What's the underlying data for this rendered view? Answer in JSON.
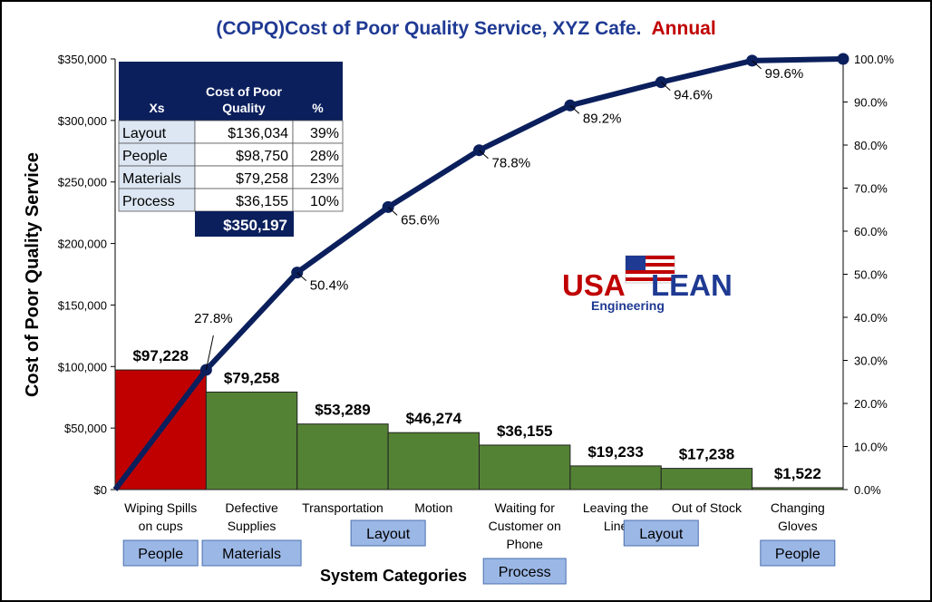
{
  "chart_data": {
    "type": "pareto",
    "title": "(COPQ)Cost of Poor Quality Service, XYZ Cafe.",
    "title_suffix": "Annual",
    "xlabel": "System Categories",
    "ylabel": "Cost of Poor Quality Service",
    "ylim": [
      0,
      350000
    ],
    "y2lim": [
      0,
      100
    ],
    "y_ticks": [
      "$0",
      "$50,000",
      "$100,000",
      "$150,000",
      "$200,000",
      "$250,000",
      "$300,000",
      "$350,000"
    ],
    "y2_ticks": [
      "0.0%",
      "10.0%",
      "20.0%",
      "30.0%",
      "40.0%",
      "50.0%",
      "60.0%",
      "70.0%",
      "80.0%",
      "90.0%",
      "100.0%"
    ],
    "categories": [
      [
        "Wiping Spills",
        "on cups"
      ],
      [
        "Defective",
        "Supplies"
      ],
      [
        "Transportation"
      ],
      [
        "Motion"
      ],
      [
        "Waiting for",
        "Customer on",
        "Phone"
      ],
      [
        "Leaving the",
        "Line"
      ],
      [
        "Out of Stock"
      ],
      [
        "Changing",
        "Gloves"
      ]
    ],
    "values": [
      97228,
      79258,
      53289,
      46274,
      36155,
      19233,
      17238,
      1522
    ],
    "value_labels": [
      "$97,228",
      "$79,258",
      "$53,289",
      "$46,274",
      "$36,155",
      "$19,233",
      "$17,238",
      "$1,522"
    ],
    "bar_colors": [
      "#c00000",
      "#548235",
      "#548235",
      "#548235",
      "#548235",
      "#548235",
      "#548235",
      "#548235"
    ],
    "cumulative_pct": [
      27.8,
      50.4,
      65.6,
      78.8,
      89.2,
      94.6,
      99.6,
      100.0
    ],
    "cumulative_labels": [
      "27.8%",
      "50.4%",
      "65.6%",
      "78.8%",
      "89.2%",
      "94.6%",
      "99.6%"
    ],
    "line_color": "#0b1f5c",
    "group_tags": [
      {
        "label": "People",
        "start": 0,
        "end": 0,
        "row": 1
      },
      {
        "label": "Materials",
        "start": 1,
        "end": 1,
        "row": 1
      },
      {
        "label": "Layout",
        "start": 2,
        "end": 3,
        "row": 0
      },
      {
        "label": "Process",
        "start": 4,
        "end": 4,
        "row": 2
      },
      {
        "label": "Layout",
        "start": 5,
        "end": 6,
        "row": 0
      },
      {
        "label": "People",
        "start": 7,
        "end": 7,
        "row": 1
      }
    ],
    "summary_table": {
      "headers": [
        "Xs",
        "Cost of Poor Quality",
        "%"
      ],
      "rows": [
        [
          "Layout",
          "$136,034",
          "39%"
        ],
        [
          "People",
          "$98,750",
          "28%"
        ],
        [
          "Materials",
          "$79,258",
          "23%"
        ],
        [
          "Process",
          "$36,155",
          "10%"
        ]
      ],
      "total": "$350,197"
    }
  },
  "logo": {
    "text_left": "USA",
    "text_right": "LEAN",
    "subtext": "Engineering"
  },
  "colors": {
    "title_blue": "#1f3a93",
    "title_red": "#c00000",
    "table_navy": "#0b1f5c",
    "table_cell": "#dde7f3",
    "tag_fill": "#9bb7e5"
  }
}
